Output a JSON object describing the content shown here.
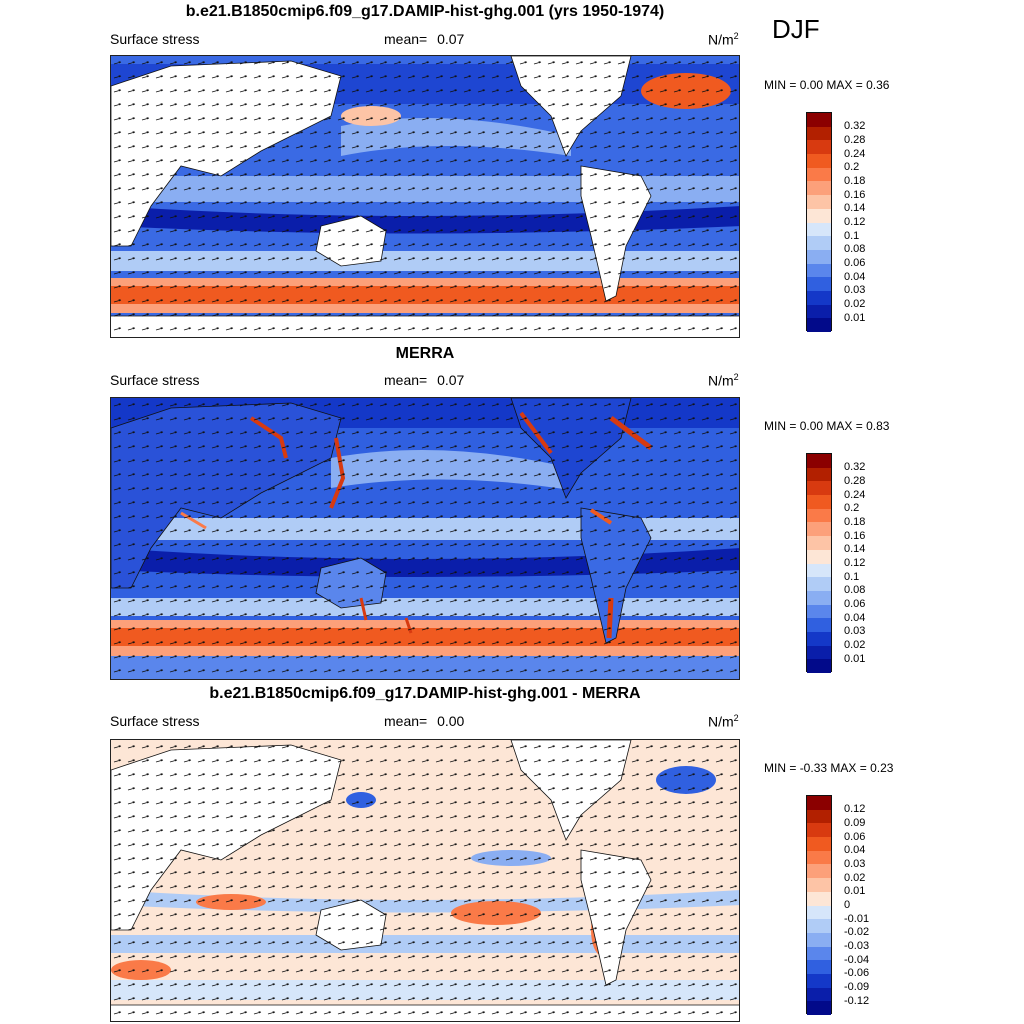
{
  "season": "DJF",
  "units_base": "N/m",
  "units_exp": "2",
  "panels": [
    {
      "title": "b.e21.B1850cmip6.f09_g17.DAMIP-hist-ghg.001 (yrs 1950-1974)",
      "left_label": "Surface stress",
      "mean_label": "mean=",
      "mean_value": "0.07",
      "min_label": "MIN =",
      "min_value": "0.00",
      "max_label": "MAX =",
      "max_value": "0.36",
      "colorbar_labels": [
        "0.32",
        "0.28",
        "0.24",
        "0.2",
        "0.18",
        "0.16",
        "0.14",
        "0.12",
        "0.1",
        "0.08",
        "0.06",
        "0.04",
        "0.03",
        "0.02",
        "0.01"
      ]
    },
    {
      "title": "MERRA",
      "left_label": "Surface stress",
      "mean_label": "mean=",
      "mean_value": "0.07",
      "min_label": "MIN =",
      "min_value": "0.00",
      "max_label": "MAX =",
      "max_value": "0.83",
      "colorbar_labels": [
        "0.32",
        "0.28",
        "0.24",
        "0.2",
        "0.18",
        "0.16",
        "0.14",
        "0.12",
        "0.1",
        "0.08",
        "0.06",
        "0.04",
        "0.03",
        "0.02",
        "0.01"
      ]
    },
    {
      "title": "b.e21.B1850cmip6.f09_g17.DAMIP-hist-ghg.001 - MERRA",
      "left_label": "Surface stress",
      "mean_label": "mean=",
      "mean_value": "0.00",
      "min_label": "MIN =",
      "min_value": "-0.33",
      "max_label": "MAX =",
      "max_value": "0.23",
      "colorbar_labels": [
        "0.12",
        "0.09",
        "0.06",
        "0.04",
        "0.03",
        "0.02",
        "0.01",
        "0",
        "-0.01",
        "-0.02",
        "-0.03",
        "-0.04",
        "-0.06",
        "-0.09",
        "-0.12"
      ]
    }
  ],
  "colors": {
    "abs_scale": [
      "#8b0000",
      "#b22000",
      "#d83a10",
      "#f05a20",
      "#fa7a48",
      "#fca07a",
      "#fdc4a6",
      "#fde6d6",
      "#d6e6fa",
      "#b0ccf6",
      "#8aaef2",
      "#5a86ec",
      "#3060e0",
      "#1438c8",
      "#0a1eaa",
      "#020a8a"
    ],
    "diff_scale": [
      "#8b0000",
      "#b22000",
      "#d83a10",
      "#f05a20",
      "#fa7a48",
      "#fca07a",
      "#fdc4a6",
      "#fde6d6",
      "#ffffff",
      "#d6e6fa",
      "#b0ccf6",
      "#8aaef2",
      "#5a86ec",
      "#3060e0",
      "#1438c8",
      "#020a8a"
    ]
  }
}
